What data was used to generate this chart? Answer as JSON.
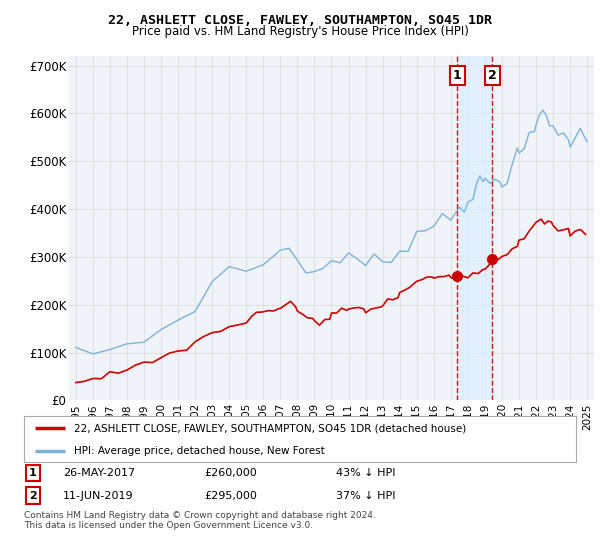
{
  "title": "22, ASHLETT CLOSE, FAWLEY, SOUTHAMPTON, SO45 1DR",
  "subtitle": "Price paid vs. HM Land Registry's House Price Index (HPI)",
  "hpi_legend": "HPI: Average price, detached house, New Forest",
  "price_legend": "22, ASHLETT CLOSE, FAWLEY, SOUTHAMPTON, SO45 1DR (detached house)",
  "footnote1": "Contains HM Land Registry data © Crown copyright and database right 2024.",
  "footnote2": "This data is licensed under the Open Government Licence v3.0.",
  "point1_date": "26-MAY-2017",
  "point1_price": "£260,000",
  "point1_note": "43% ↓ HPI",
  "point2_date": "11-JUN-2019",
  "point2_price": "£295,000",
  "point2_note": "37% ↓ HPI",
  "hpi_color": "#7ab4d8",
  "price_color": "#cc0000",
  "vline_color": "#cc0000",
  "span_color": "#ddeeff",
  "background_color": "#ffffff",
  "plot_bg_color": "#f5f5f5",
  "grid_color": "#dddddd",
  "ylim": [
    0,
    720000
  ],
  "yticks": [
    0,
    100000,
    200000,
    300000,
    400000,
    500000,
    600000,
    700000
  ],
  "ytick_labels": [
    "£0",
    "£100K",
    "£200K",
    "£300K",
    "£400K",
    "£500K",
    "£600K",
    "£700K"
  ],
  "point1_x": 2017.38,
  "point2_x": 2019.44,
  "point1_y": 260000,
  "point2_y": 295000,
  "xlim_left": 1994.6,
  "xlim_right": 2025.4
}
